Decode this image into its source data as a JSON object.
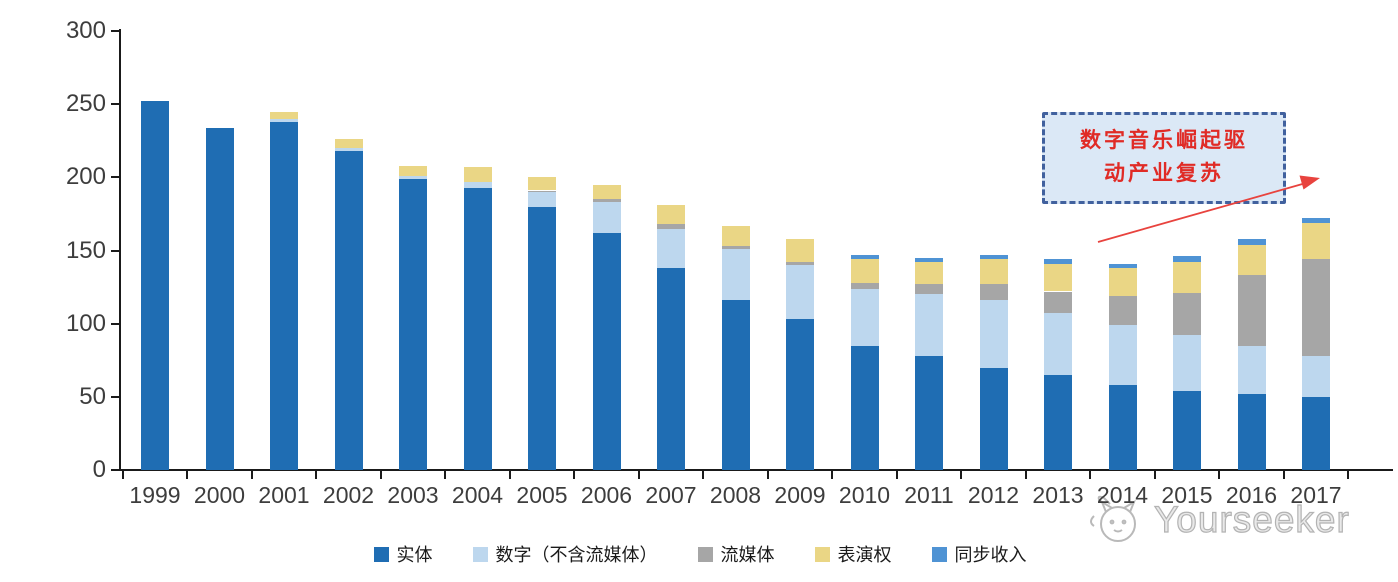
{
  "chart_data": {
    "type": "bar",
    "variant": "stacked",
    "title": "",
    "xlabel": "",
    "ylabel": "",
    "ylim": [
      0,
      300
    ],
    "yticks": [
      0,
      50,
      100,
      150,
      200,
      250,
      300
    ],
    "grid": false,
    "legend_position": "bottom",
    "categories": [
      "1999",
      "2000",
      "2001",
      "2002",
      "2003",
      "2004",
      "2005",
      "2006",
      "2007",
      "2008",
      "2009",
      "2010",
      "2011",
      "2012",
      "2013",
      "2014",
      "2015",
      "2016",
      "2017"
    ],
    "series": [
      {
        "name": "实体",
        "color": "#1f6db3",
        "values": [
          252,
          234,
          238,
          218,
          199,
          193,
          180,
          162,
          138,
          116,
          103,
          85,
          78,
          70,
          65,
          58,
          54,
          52,
          50
        ]
      },
      {
        "name": "数字（不含流媒体）",
        "color": "#bdd7ee",
        "values": [
          0,
          0,
          2,
          2,
          2,
          4,
          10,
          21,
          27,
          35,
          37,
          39,
          42,
          46,
          42,
          41,
          38,
          33,
          28
        ]
      },
      {
        "name": "流媒体",
        "color": "#a6a6a6",
        "values": [
          0,
          0,
          0,
          0,
          0,
          0,
          1,
          2,
          3,
          2,
          2,
          4,
          7,
          11,
          15,
          20,
          29,
          48,
          66
        ]
      },
      {
        "name": "表演权",
        "color": "#ead685",
        "values": [
          0,
          0,
          5,
          6,
          7,
          10,
          9,
          10,
          13,
          14,
          16,
          16,
          15,
          17,
          19,
          19,
          21,
          21,
          25
        ]
      },
      {
        "name": "同步收入",
        "color": "#4f93d4",
        "values": [
          0,
          0,
          0,
          0,
          0,
          0,
          0,
          0,
          0,
          0,
          0,
          3,
          3,
          3,
          3,
          3,
          4,
          4,
          3
        ]
      }
    ]
  },
  "annotation": {
    "line1": "数字音乐崛起驱",
    "line2": "动产业复苏",
    "box_fill": "#dbe8f6",
    "border_color": "#41619e",
    "text_color": "#e02b26",
    "arrow_color": "#e8433e"
  },
  "watermark": {
    "text": "Yourseeker",
    "icon": "cat-logo-icon",
    "color": "#b3b3b3"
  },
  "axis": {
    "text_color": "#3d3d3d",
    "line_color": "#1a1a1a"
  }
}
